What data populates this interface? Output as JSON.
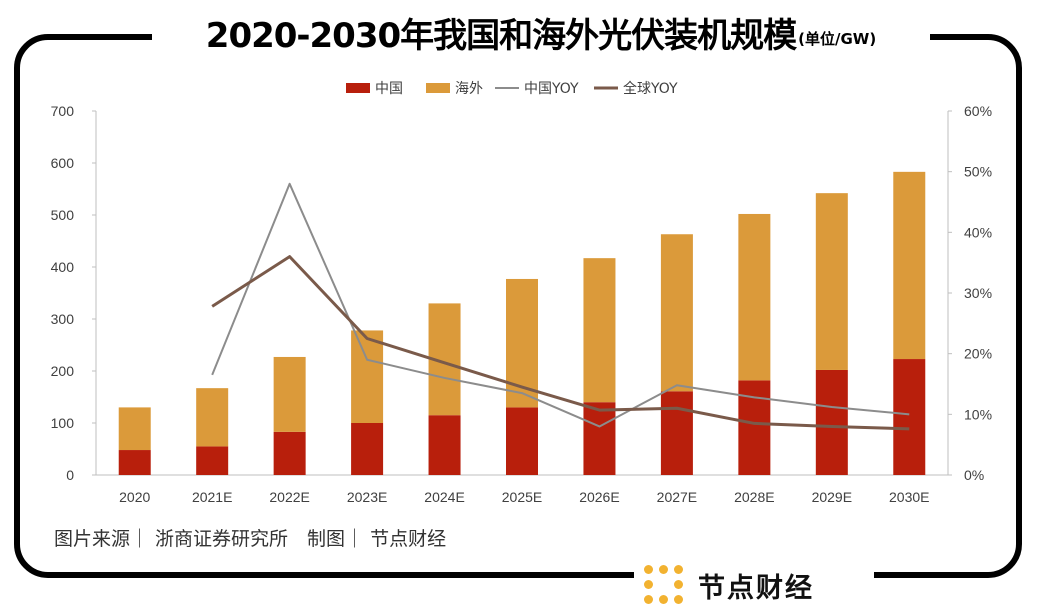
{
  "title": "2020-2030年我国和海外光伏装机规模",
  "title_unit": "(单位/GW)",
  "source_text": "图片来源｜ 浙商证券研究所　制图｜ 节点财经",
  "brand": {
    "name": "节点财经",
    "logo_icon": "dot-grid-logo-icon",
    "logo_color": "#f2b230"
  },
  "chart_data": {
    "type": "bar",
    "stacked": true,
    "categories": [
      "2020",
      "2021E",
      "2022E",
      "2023E",
      "2024E",
      "2025E",
      "2026E",
      "2027E",
      "2028E",
      "2029E",
      "2030E"
    ],
    "series": [
      {
        "name": "中国",
        "kind": "bar",
        "axis": "left",
        "color": "#b81f0c",
        "values": [
          48,
          55,
          83,
          100,
          115,
          130,
          140,
          161,
          182,
          202,
          223
        ]
      },
      {
        "name": "海外",
        "kind": "bar",
        "axis": "left",
        "color": "#db9a3a",
        "values": [
          82,
          112,
          144,
          178,
          215,
          247,
          277,
          302,
          320,
          340,
          360
        ]
      },
      {
        "name": "中国YOY",
        "kind": "line",
        "axis": "right",
        "color": "#8c8c8c",
        "values": [
          null,
          0.165,
          0.48,
          0.19,
          0.16,
          0.135,
          0.08,
          0.148,
          0.128,
          0.112,
          0.1
        ]
      },
      {
        "name": "全球YOY",
        "kind": "line",
        "axis": "right",
        "color": "#7a5a4a",
        "values": [
          null,
          0.278,
          0.36,
          0.225,
          0.185,
          0.145,
          0.107,
          0.11,
          0.085,
          0.08,
          0.076
        ]
      }
    ],
    "y_left": {
      "min": 0,
      "max": 700,
      "ticks": [
        0,
        100,
        200,
        300,
        400,
        500,
        600,
        700
      ]
    },
    "y_right": {
      "min": 0,
      "max": 0.6,
      "ticks": [
        "0%",
        "10%",
        "20%",
        "30%",
        "40%",
        "50%",
        "60%"
      ]
    },
    "legend_position": "top-center",
    "grid": false
  }
}
